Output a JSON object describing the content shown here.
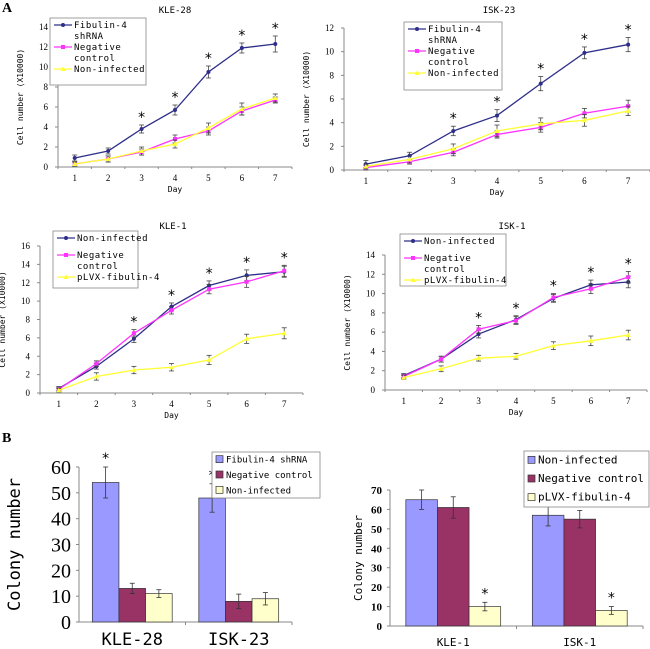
{
  "panel_labels": {
    "a": "A",
    "b": "B"
  },
  "chart_data": [
    {
      "id": "kle28-line",
      "type": "line",
      "title": "KLE-28",
      "xlabel": "Day",
      "ylabel": "Cell number (X10000)",
      "x": [
        1,
        2,
        3,
        4,
        5,
        6,
        7
      ],
      "ylim": [
        0,
        14
      ],
      "yticks": [
        0,
        2,
        4,
        6,
        8,
        10,
        12,
        14
      ],
      "legend": "top-left",
      "series": [
        {
          "name": "Fibulin-4 shRNA",
          "legend_lines": [
            "Fibulin-4",
            "shRNA"
          ],
          "color": "#2e2e8a",
          "marker": "diamond",
          "values": [
            0.9,
            1.6,
            3.8,
            5.7,
            9.5,
            11.9,
            12.3
          ],
          "errors": [
            0.3,
            0.3,
            0.4,
            0.5,
            0.6,
            0.5,
            0.8
          ]
        },
        {
          "name": "Negative control",
          "legend_lines": [
            "Negative",
            "control"
          ],
          "color": "#ff33ff",
          "marker": "square",
          "values": [
            0.3,
            0.8,
            1.5,
            2.8,
            3.6,
            5.6,
            6.7
          ],
          "errors": [
            0.2,
            0.3,
            0.3,
            0.4,
            0.4,
            0.4,
            0.3
          ]
        },
        {
          "name": "Non-infected",
          "legend_lines": [
            "Non-infected"
          ],
          "color": "#ffff33",
          "marker": "triangle",
          "values": [
            0.3,
            0.8,
            1.6,
            2.3,
            3.9,
            5.8,
            6.9
          ],
          "errors": [
            0.2,
            0.3,
            0.4,
            0.4,
            0.5,
            0.6,
            0.4
          ]
        }
      ],
      "significance": [
        3,
        4,
        5,
        6,
        7
      ]
    },
    {
      "id": "isk23-line",
      "type": "line",
      "title": "ISK-23",
      "xlabel": "Day",
      "ylabel": "Cell number (X10000)",
      "x": [
        1,
        2,
        3,
        4,
        5,
        6,
        7
      ],
      "ylim": [
        0,
        12
      ],
      "yticks": [
        0,
        2,
        4,
        6,
        8,
        10,
        12
      ],
      "legend": "top-left",
      "series": [
        {
          "name": "Fibulin-4 shRNA",
          "legend_lines": [
            "Fibulin-4",
            "shRNA"
          ],
          "color": "#2e2e8a",
          "marker": "diamond",
          "values": [
            0.5,
            1.2,
            3.3,
            4.6,
            7.3,
            9.9,
            10.6
          ],
          "errors": [
            0.3,
            0.3,
            0.4,
            0.5,
            0.6,
            0.5,
            0.6
          ]
        },
        {
          "name": "Negative control",
          "legend_lines": [
            "Negative",
            "control"
          ],
          "color": "#ff33ff",
          "marker": "square",
          "values": [
            0.2,
            0.7,
            1.5,
            3.0,
            3.6,
            4.8,
            5.4
          ],
          "errors": [
            0.2,
            0.2,
            0.3,
            0.3,
            0.4,
            0.4,
            0.5
          ]
        },
        {
          "name": "Non-infected",
          "legend_lines": [
            "Non-infected"
          ],
          "color": "#ffff33",
          "marker": "triangle",
          "values": [
            0.3,
            0.9,
            1.8,
            3.3,
            3.9,
            4.2,
            5.0
          ],
          "errors": [
            0.2,
            0.3,
            0.4,
            0.5,
            0.5,
            0.5,
            0.4
          ]
        }
      ],
      "significance": [
        3,
        4,
        5,
        6,
        7
      ]
    },
    {
      "id": "kle1-line",
      "type": "line",
      "title": "KLE-1",
      "xlabel": "Day",
      "ylabel": "Cell number (X10000)",
      "x": [
        1,
        2,
        3,
        4,
        5,
        6,
        7
      ],
      "ylim": [
        0,
        16
      ],
      "yticks": [
        0,
        2,
        4,
        6,
        8,
        10,
        12,
        14,
        16
      ],
      "legend": "top-left",
      "series": [
        {
          "name": "Non-infected",
          "legend_lines": [
            "Non-infected"
          ],
          "color": "#2e2e8a",
          "marker": "diamond",
          "values": [
            0.5,
            2.9,
            5.9,
            9.4,
            11.7,
            12.8,
            13.2
          ],
          "errors": [
            0.2,
            0.3,
            0.4,
            0.4,
            0.5,
            0.6,
            0.6
          ]
        },
        {
          "name": "Negative control",
          "legend_lines": [
            "Negative",
            "control"
          ],
          "color": "#ff33ff",
          "marker": "square",
          "values": [
            0.4,
            3.2,
            6.5,
            9.0,
            11.3,
            12.1,
            13.3
          ],
          "errors": [
            0.2,
            0.3,
            0.4,
            0.4,
            0.5,
            0.6,
            0.6
          ]
        },
        {
          "name": "pLVX-fibulin-4",
          "legend_lines": [
            "pLVX-fibulin-4"
          ],
          "color": "#ffff33",
          "marker": "triangle",
          "values": [
            0.3,
            1.8,
            2.5,
            2.8,
            3.6,
            5.9,
            6.5
          ],
          "errors": [
            0.2,
            0.4,
            0.4,
            0.4,
            0.5,
            0.5,
            0.6
          ]
        }
      ],
      "significance": [
        3,
        4,
        5,
        6,
        7
      ]
    },
    {
      "id": "isk1-line",
      "type": "line",
      "title": "ISK-1",
      "xlabel": "Day",
      "ylabel": "Cell number (X10000)",
      "x": [
        1,
        2,
        3,
        4,
        5,
        6,
        7
      ],
      "ylim": [
        0,
        14
      ],
      "yticks": [
        0,
        2,
        4,
        6,
        8,
        10,
        12,
        14
      ],
      "legend": "top-left",
      "series": [
        {
          "name": "Non-infected",
          "legend_lines": [
            "Non-infected"
          ],
          "color": "#2e2e8a",
          "marker": "diamond",
          "values": [
            1.5,
            3.2,
            5.8,
            7.3,
            9.5,
            10.9,
            11.2
          ],
          "errors": [
            0.2,
            0.3,
            0.4,
            0.4,
            0.4,
            0.5,
            0.6
          ]
        },
        {
          "name": "Negative control",
          "legend_lines": [
            "Negative",
            "control"
          ],
          "color": "#ff33ff",
          "marker": "square",
          "values": [
            1.4,
            3.2,
            6.3,
            7.2,
            9.6,
            10.5,
            11.7
          ],
          "errors": [
            0.2,
            0.3,
            0.4,
            0.4,
            0.4,
            0.5,
            0.6
          ]
        },
        {
          "name": "pLVX-fibulin-4",
          "legend_lines": [
            "pLVX-fibulin-4"
          ],
          "color": "#ffff33",
          "marker": "triangle",
          "values": [
            1.3,
            2.2,
            3.3,
            3.5,
            4.6,
            5.1,
            5.7
          ],
          "errors": [
            0.2,
            0.3,
            0.3,
            0.3,
            0.4,
            0.5,
            0.5
          ]
        }
      ],
      "significance": [
        3,
        4,
        5,
        6,
        7
      ]
    },
    {
      "id": "colony-bar-1",
      "type": "bar",
      "title": "",
      "xlabel": "",
      "ylabel": "Colony number",
      "categories": [
        "KLE-28",
        "ISK-23"
      ],
      "ylim": [
        0,
        60
      ],
      "yticks": [
        0,
        10,
        20,
        30,
        40,
        50,
        60
      ],
      "legend": "top-right",
      "series": [
        {
          "name": "Fibulin-4 shRNA",
          "color": "#9999ff",
          "values": [
            54,
            48
          ],
          "errors": [
            6,
            5.5
          ]
        },
        {
          "name": "Negative control",
          "color": "#993366",
          "values": [
            13,
            8
          ],
          "errors": [
            2,
            2.8
          ]
        },
        {
          "name": "Non-infected",
          "color": "#ffffcc",
          "values": [
            11,
            9
          ],
          "errors": [
            1.5,
            2.4
          ]
        }
      ],
      "significance": [
        {
          "category": "KLE-28",
          "series": "Fibulin-4 shRNA"
        },
        {
          "category": "ISK-23",
          "series": "Fibulin-4 shRNA"
        }
      ]
    },
    {
      "id": "colony-bar-2",
      "type": "bar",
      "title": "",
      "xlabel": "",
      "ylabel": "Colony number",
      "categories": [
        "KLE-1",
        "ISK-1"
      ],
      "ylim": [
        0,
        70
      ],
      "yticks": [
        0,
        10,
        20,
        30,
        40,
        50,
        60,
        70
      ],
      "legend": "top-right",
      "series": [
        {
          "name": "Non-infected",
          "color": "#9999ff",
          "values": [
            65,
            57
          ],
          "errors": [
            5,
            5.5
          ]
        },
        {
          "name": "Negative control",
          "color": "#993366",
          "values": [
            61,
            55
          ],
          "errors": [
            5.5,
            4.5
          ]
        },
        {
          "name": "pLVX-fibulin-4",
          "color": "#ffffcc",
          "values": [
            10,
            8
          ],
          "errors": [
            2.2,
            2
          ]
        }
      ],
      "significance": [
        {
          "category": "KLE-1",
          "series": "pLVX-fibulin-4"
        },
        {
          "category": "ISK-1",
          "series": "pLVX-fibulin-4"
        }
      ]
    }
  ]
}
